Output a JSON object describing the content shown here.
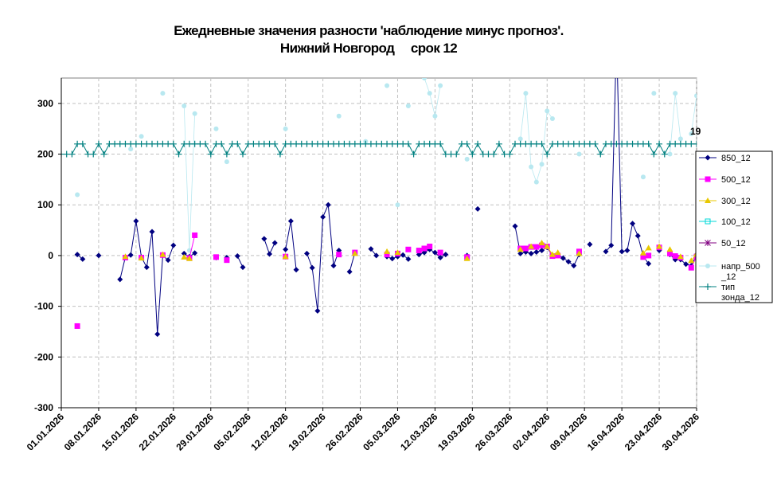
{
  "chart_data": {
    "type": "line",
    "title_lines": [
      "Ежедневные значения разности 'наблюдение минус прогноз'.",
      "Нижний Новгород     срок 12"
    ],
    "x_tick_labels": [
      "01.01.2026",
      "08.01.2026",
      "15.01.2026",
      "22.01.2026",
      "29.01.2026",
      "05.02.2026",
      "12.02.2026",
      "19.02.2026",
      "26.02.2026",
      "05.03.2026",
      "12.03.2026",
      "19.03.2026",
      "26.03.2026",
      "02.04.2026",
      "09.04.2026",
      "16.04.2026",
      "23.04.2026",
      "30.04.2026"
    ],
    "x_tick_days": [
      0,
      7,
      14,
      21,
      28,
      35,
      42,
      49,
      56,
      63,
      70,
      77,
      84,
      91,
      98,
      105,
      112,
      119
    ],
    "xlim": [
      0,
      119
    ],
    "ylim": [
      -300,
      350
    ],
    "y_ticks": [
      -300,
      -200,
      -100,
      0,
      100,
      200,
      300
    ],
    "grid": true,
    "legend_placement": "right",
    "end_annotation": "19",
    "series": [
      {
        "name": "850_12",
        "color": "#000080",
        "marker": "diamond",
        "points": [
          [
            3,
            2
          ],
          [
            4,
            -7
          ],
          [
            7,
            0
          ],
          [
            11,
            -47
          ],
          [
            12,
            -3
          ],
          [
            13,
            1
          ],
          [
            14,
            68
          ],
          [
            15,
            -3
          ],
          [
            16,
            -23
          ],
          [
            17,
            47
          ],
          [
            18,
            -155
          ],
          [
            19,
            0
          ],
          [
            20,
            -9
          ],
          [
            21,
            20
          ],
          [
            23,
            4
          ],
          [
            24,
            -2
          ],
          [
            25,
            5
          ],
          [
            29,
            -4
          ],
          [
            31,
            -4
          ],
          [
            33,
            -1
          ],
          [
            34,
            -23
          ],
          [
            38,
            33
          ],
          [
            39,
            3
          ],
          [
            40,
            25
          ],
          [
            42,
            12
          ],
          [
            43,
            68
          ],
          [
            44,
            -28
          ],
          [
            46,
            4
          ],
          [
            47,
            -24
          ],
          [
            48,
            -109
          ],
          [
            49,
            76
          ],
          [
            50,
            100
          ],
          [
            51,
            -20
          ],
          [
            52,
            10
          ],
          [
            54,
            -32
          ],
          [
            55,
            6
          ],
          [
            58,
            13
          ],
          [
            59,
            0
          ],
          [
            61,
            -2
          ],
          [
            62,
            -6
          ],
          [
            63,
            -2
          ],
          [
            64,
            1
          ],
          [
            65,
            -7
          ],
          [
            67,
            2
          ],
          [
            68,
            6
          ],
          [
            69,
            12
          ],
          [
            70,
            6
          ],
          [
            71,
            -4
          ],
          [
            72,
            2
          ],
          [
            76,
            0
          ],
          [
            78,
            92
          ],
          [
            85,
            58
          ],
          [
            86,
            4
          ],
          [
            87,
            7
          ],
          [
            88,
            4
          ],
          [
            89,
            7
          ],
          [
            90,
            10
          ],
          [
            91,
            16
          ],
          [
            92,
            -1
          ],
          [
            93,
            3
          ],
          [
            94,
            -5
          ],
          [
            95,
            -12
          ],
          [
            96,
            -20
          ],
          [
            97,
            2
          ],
          [
            99,
            22
          ],
          [
            102,
            8
          ],
          [
            103,
            20
          ],
          [
            104,
            430
          ],
          [
            105,
            8
          ],
          [
            106,
            10
          ],
          [
            107,
            63
          ],
          [
            108,
            39
          ],
          [
            109,
            -1
          ],
          [
            110,
            -16
          ],
          [
            112,
            10
          ],
          [
            114,
            2
          ],
          [
            115,
            -8
          ],
          [
            116,
            -8
          ],
          [
            117,
            -17
          ],
          [
            118,
            -20
          ],
          [
            119,
            2
          ]
        ]
      },
      {
        "name": "500_12",
        "color": "#ff00ff",
        "marker": "square",
        "points": [
          [
            3,
            -139
          ],
          [
            12,
            -4
          ],
          [
            15,
            -4
          ],
          [
            19,
            1
          ],
          [
            24,
            -5
          ],
          [
            25,
            40
          ],
          [
            29,
            -3
          ],
          [
            31,
            -9
          ],
          [
            42,
            -2
          ],
          [
            52,
            2
          ],
          [
            55,
            6
          ],
          [
            61,
            2
          ],
          [
            63,
            4
          ],
          [
            65,
            12
          ],
          [
            67,
            10
          ],
          [
            68,
            14
          ],
          [
            69,
            18
          ],
          [
            71,
            6
          ],
          [
            76,
            -3
          ],
          [
            86,
            14
          ],
          [
            87,
            14
          ],
          [
            88,
            17
          ],
          [
            89,
            17
          ],
          [
            90,
            20
          ],
          [
            91,
            18
          ],
          [
            92,
            -1
          ],
          [
            93,
            0
          ],
          [
            97,
            8
          ],
          [
            109,
            -3
          ],
          [
            110,
            0
          ],
          [
            112,
            16
          ],
          [
            114,
            4
          ],
          [
            115,
            -1
          ],
          [
            116,
            -4
          ],
          [
            118,
            -24
          ],
          [
            119,
            -2
          ]
        ]
      },
      {
        "name": "300_12",
        "color": "#e8c800",
        "marker": "triangle",
        "points": [
          [
            12,
            -2
          ],
          [
            15,
            -5
          ],
          [
            19,
            2
          ],
          [
            23,
            -3
          ],
          [
            24,
            -6
          ],
          [
            42,
            -2
          ],
          [
            55,
            4
          ],
          [
            61,
            8
          ],
          [
            63,
            6
          ],
          [
            76,
            -6
          ],
          [
            86,
            12
          ],
          [
            88,
            18
          ],
          [
            90,
            25
          ],
          [
            91,
            18
          ],
          [
            92,
            2
          ],
          [
            93,
            6
          ],
          [
            97,
            4
          ],
          [
            109,
            5
          ],
          [
            110,
            15
          ],
          [
            112,
            18
          ],
          [
            114,
            12
          ],
          [
            116,
            -2
          ],
          [
            118,
            -10
          ],
          [
            119,
            3
          ]
        ]
      },
      {
        "name": "100_12",
        "color": "#00d8d8",
        "marker": "square-open",
        "points": []
      },
      {
        "name": "50_12",
        "color": "#800080",
        "marker": "star",
        "points": []
      },
      {
        "name": "напр_500_12",
        "color": "#b8e8f0",
        "marker": "circle",
        "points": [
          [
            3,
            120
          ],
          [
            13,
            210
          ],
          [
            15,
            235
          ],
          [
            19,
            320
          ],
          [
            23,
            295
          ],
          [
            24,
            10
          ],
          [
            25,
            280
          ],
          [
            29,
            250
          ],
          [
            31,
            185
          ],
          [
            42,
            250
          ],
          [
            52,
            275
          ],
          [
            57,
            225
          ],
          [
            61,
            335
          ],
          [
            63,
            100
          ],
          [
            65,
            295
          ],
          [
            68,
            350
          ],
          [
            69,
            320
          ],
          [
            70,
            275
          ],
          [
            71,
            335
          ],
          [
            76,
            190
          ],
          [
            86,
            230
          ],
          [
            87,
            320
          ],
          [
            88,
            175
          ],
          [
            89,
            145
          ],
          [
            90,
            180
          ],
          [
            91,
            285
          ],
          [
            92,
            270
          ],
          [
            97,
            200
          ],
          [
            109,
            155
          ],
          [
            111,
            320
          ],
          [
            114,
            200
          ],
          [
            115,
            320
          ],
          [
            116,
            230
          ],
          [
            118,
            240
          ],
          [
            119,
            315
          ]
        ]
      },
      {
        "name": "тип зонда_12",
        "color": "#008080",
        "marker": "plus",
        "points": [
          [
            0,
            200
          ],
          [
            1,
            200
          ],
          [
            2,
            200
          ],
          [
            3,
            220
          ],
          [
            4,
            220
          ],
          [
            5,
            200
          ],
          [
            6,
            200
          ],
          [
            7,
            220
          ],
          [
            8,
            200
          ],
          [
            9,
            220
          ],
          [
            10,
            220
          ],
          [
            11,
            220
          ],
          [
            12,
            220
          ],
          [
            13,
            220
          ],
          [
            14,
            220
          ],
          [
            15,
            220
          ],
          [
            16,
            220
          ],
          [
            17,
            220
          ],
          [
            18,
            220
          ],
          [
            19,
            220
          ],
          [
            20,
            220
          ],
          [
            21,
            220
          ],
          [
            22,
            200
          ],
          [
            23,
            220
          ],
          [
            24,
            220
          ],
          [
            25,
            220
          ],
          [
            26,
            220
          ],
          [
            27,
            220
          ],
          [
            28,
            200
          ],
          [
            29,
            220
          ],
          [
            30,
            220
          ],
          [
            31,
            200
          ],
          [
            32,
            220
          ],
          [
            33,
            220
          ],
          [
            34,
            200
          ],
          [
            35,
            220
          ],
          [
            36,
            220
          ],
          [
            37,
            220
          ],
          [
            38,
            220
          ],
          [
            39,
            220
          ],
          [
            40,
            220
          ],
          [
            41,
            200
          ],
          [
            42,
            220
          ],
          [
            43,
            220
          ],
          [
            44,
            220
          ],
          [
            45,
            220
          ],
          [
            46,
            220
          ],
          [
            47,
            220
          ],
          [
            48,
            220
          ],
          [
            49,
            220
          ],
          [
            50,
            220
          ],
          [
            51,
            220
          ],
          [
            52,
            220
          ],
          [
            53,
            220
          ],
          [
            54,
            220
          ],
          [
            55,
            220
          ],
          [
            56,
            220
          ],
          [
            57,
            220
          ],
          [
            58,
            220
          ],
          [
            59,
            220
          ],
          [
            60,
            220
          ],
          [
            61,
            220
          ],
          [
            62,
            220
          ],
          [
            63,
            220
          ],
          [
            64,
            220
          ],
          [
            65,
            220
          ],
          [
            66,
            200
          ],
          [
            67,
            220
          ],
          [
            68,
            220
          ],
          [
            69,
            220
          ],
          [
            70,
            220
          ],
          [
            71,
            220
          ],
          [
            72,
            200
          ],
          [
            73,
            200
          ],
          [
            74,
            200
          ],
          [
            75,
            220
          ],
          [
            76,
            220
          ],
          [
            77,
            200
          ],
          [
            78,
            220
          ],
          [
            79,
            200
          ],
          [
            80,
            200
          ],
          [
            81,
            200
          ],
          [
            82,
            220
          ],
          [
            83,
            200
          ],
          [
            84,
            200
          ],
          [
            85,
            220
          ],
          [
            86,
            220
          ],
          [
            87,
            220
          ],
          [
            88,
            220
          ],
          [
            89,
            220
          ],
          [
            90,
            220
          ],
          [
            91,
            200
          ],
          [
            92,
            220
          ],
          [
            93,
            220
          ],
          [
            94,
            220
          ],
          [
            95,
            220
          ],
          [
            96,
            220
          ],
          [
            97,
            220
          ],
          [
            98,
            220
          ],
          [
            99,
            220
          ],
          [
            100,
            220
          ],
          [
            101,
            200
          ],
          [
            102,
            220
          ],
          [
            103,
            220
          ],
          [
            104,
            220
          ],
          [
            105,
            220
          ],
          [
            106,
            220
          ],
          [
            107,
            220
          ],
          [
            108,
            220
          ],
          [
            109,
            220
          ],
          [
            110,
            220
          ],
          [
            111,
            200
          ],
          [
            112,
            220
          ],
          [
            113,
            200
          ],
          [
            114,
            220
          ],
          [
            115,
            220
          ],
          [
            116,
            220
          ],
          [
            117,
            220
          ],
          [
            118,
            220
          ],
          [
            119,
            220
          ]
        ]
      }
    ]
  }
}
